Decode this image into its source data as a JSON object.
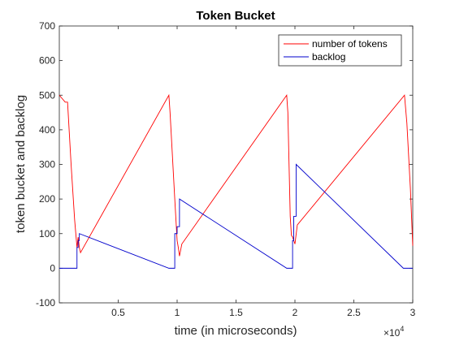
{
  "chart_data": {
    "type": "line",
    "title": "Token Bucket",
    "xlabel": "time (in microseconds)",
    "ylabel": "token bucket and backlog",
    "x_exponent_label": "×10",
    "x_exponent_power": "4",
    "xlim": [
      0,
      30000
    ],
    "ylim": [
      -100,
      700
    ],
    "x_ticks": [
      5000,
      10000,
      15000,
      20000,
      25000,
      30000
    ],
    "x_tick_labels": [
      "0.5",
      "1",
      "1.5",
      "2",
      "2.5",
      "3"
    ],
    "y_ticks": [
      -100,
      0,
      100,
      200,
      300,
      400,
      500,
      600,
      700
    ],
    "y_tick_labels": [
      "-100",
      "0",
      "100",
      "200",
      "300",
      "400",
      "500",
      "600",
      "700"
    ],
    "grid": false,
    "legend_position": "top-right",
    "series": [
      {
        "name": "number of tokens",
        "color": "#ff0000",
        "x": [
          0,
          500,
          700,
          1000,
          1300,
          1500,
          1600,
          1700,
          1800,
          9300,
          9400,
          9800,
          10000,
          10100,
          10200,
          10400,
          19300,
          19400,
          19600,
          19700,
          19800,
          19900,
          20000,
          20200,
          29300,
          29500,
          29800,
          30000
        ],
        "y": [
          500,
          480,
          480,
          300,
          140,
          60,
          90,
          60,
          45,
          500,
          450,
          200,
          80,
          60,
          35,
          70,
          500,
          450,
          150,
          95,
          90,
          80,
          70,
          125,
          500,
          420,
          230,
          65
        ]
      },
      {
        "name": "backlog",
        "color": "#0000cc",
        "x": [
          0,
          1500,
          1500,
          1600,
          1600,
          1700,
          1700,
          9300,
          9800,
          9800,
          10000,
          10000,
          10200,
          10200,
          19300,
          19800,
          19800,
          19900,
          19900,
          20100,
          20100,
          29200,
          29900,
          30000
        ],
        "y": [
          0,
          0,
          60,
          60,
          80,
          80,
          100,
          0,
          0,
          100,
          100,
          120,
          120,
          200,
          0,
          0,
          80,
          80,
          150,
          150,
          300,
          0,
          0,
          0
        ]
      }
    ]
  }
}
